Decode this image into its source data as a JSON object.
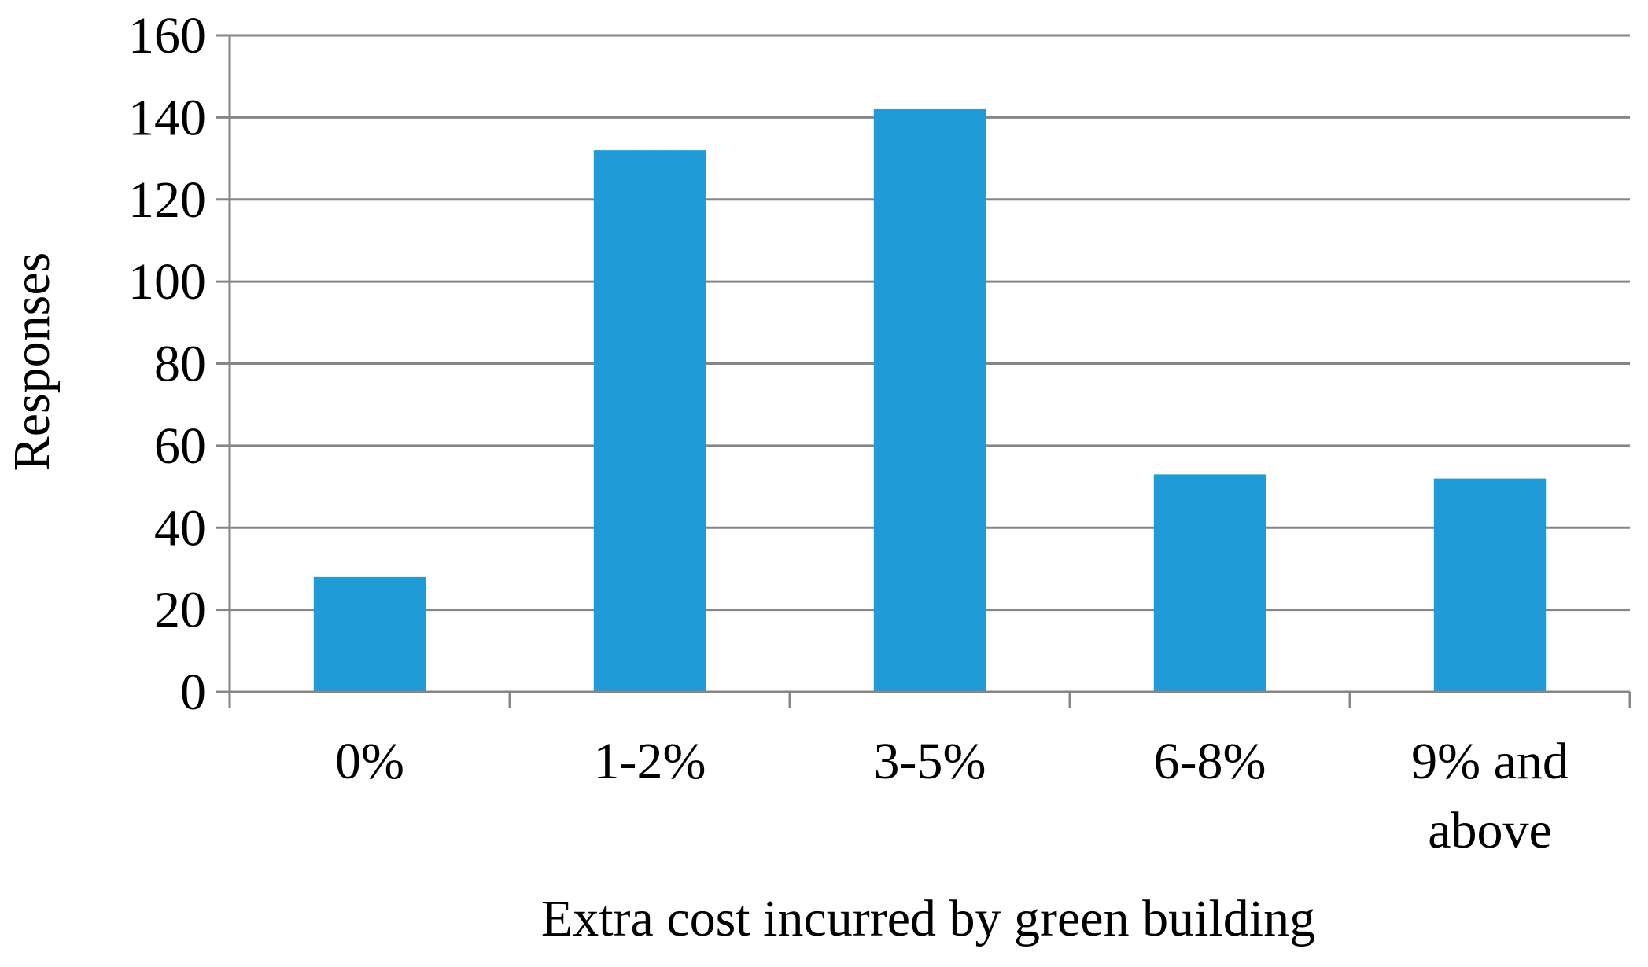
{
  "chart_data": {
    "type": "bar",
    "title": "",
    "xlabel": "Extra cost incurred by green building",
    "ylabel": "Responses",
    "categories": [
      "0%",
      "1-2%",
      "3-5%",
      "6-8%",
      "9% and above"
    ],
    "category_lines": [
      [
        "0%"
      ],
      [
        "1-2%"
      ],
      [
        "3-5%"
      ],
      [
        "6-8%"
      ],
      [
        "9% and",
        "above"
      ]
    ],
    "values": [
      28,
      132,
      142,
      53,
      52
    ],
    "ylim": [
      0,
      160
    ],
    "yticks": [
      "0",
      "20",
      "40",
      "60",
      "80",
      "100",
      "120",
      "140",
      "160"
    ],
    "grid": true,
    "legend": "none",
    "colors": {
      "bar": "#1f9bd7",
      "grid": "#868686",
      "axis": "#868686",
      "text": "#000000"
    }
  }
}
